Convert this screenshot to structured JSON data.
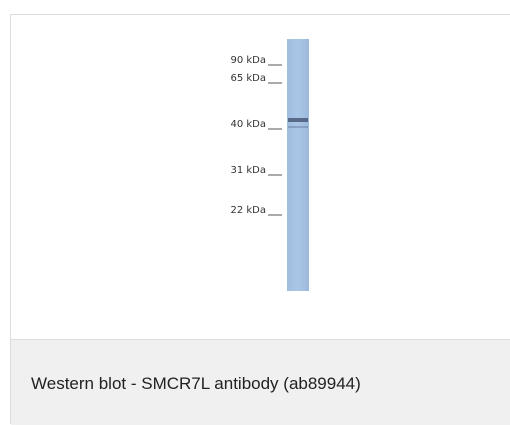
{
  "figure": {
    "markers": [
      "90 kDa",
      "65 kDa",
      "40 kDa",
      "31 kDa",
      "22 kDa"
    ]
  },
  "caption": "Western blot - SMCR7L antibody (ab89944)"
}
